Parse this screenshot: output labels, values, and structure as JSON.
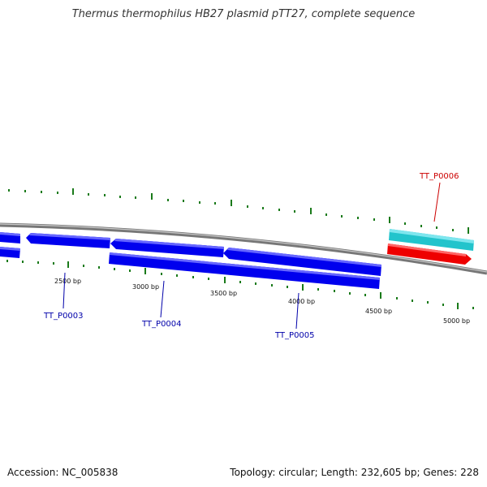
{
  "title": "Thermus thermophilus HB27 plasmid pTT27, complete sequence",
  "footer": {
    "accession": "Accession: NC_005838",
    "summary": "Topology: circular; Length: 232,605 bp; Genes: 228"
  },
  "scale": {
    "ticks": [
      {
        "label": "2500 bp"
      },
      {
        "label": "3000 bp"
      },
      {
        "label": "3500 bp"
      },
      {
        "label": "4000 bp"
      },
      {
        "label": "4500 bp"
      },
      {
        "label": "5000 bp"
      }
    ]
  },
  "genes": [
    {
      "label": "TT_P0003",
      "color": "#0000aa"
    },
    {
      "label": "TT_P0004",
      "color": "#0000aa"
    },
    {
      "label": "TT_P0005",
      "color": "#0000aa"
    },
    {
      "label": "TT_P0006",
      "color": "#cc0000"
    }
  ],
  "colors": {
    "cds": "#0000ee",
    "rna": "#22c4cc",
    "gene_red": "#ee0000",
    "backbone": "#888888",
    "gc_ticks": "#1a7a1a"
  }
}
